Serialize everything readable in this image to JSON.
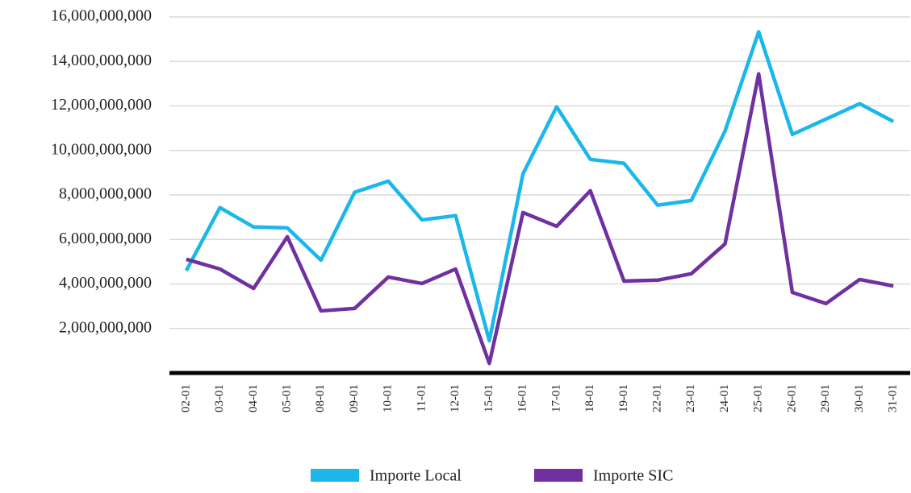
{
  "chart_data": {
    "type": "line",
    "categories": [
      "02-01",
      "03-01",
      "04-01",
      "05-01",
      "08-01",
      "09-01",
      "10-01",
      "11-01",
      "12-01",
      "15-01",
      "16-01",
      "17-01",
      "18-01",
      "19-01",
      "22-01",
      "23-01",
      "24-01",
      "25-01",
      "26-01",
      "29-01",
      "30-01",
      "31-01"
    ],
    "series": [
      {
        "name": "Importe Local",
        "color": "#1ab7ea",
        "values": [
          4600000000,
          7430000000,
          6560000000,
          6520000000,
          5070000000,
          8120000000,
          8620000000,
          6880000000,
          7070000000,
          1450000000,
          8950000000,
          11960000000,
          9600000000,
          9420000000,
          7540000000,
          7750000000,
          10870000000,
          15330000000,
          10720000000,
          11410000000,
          12100000000,
          11300000000
        ]
      },
      {
        "name": "Importe SIC",
        "color": "#7030a0",
        "values": [
          5110000000,
          4670000000,
          3800000000,
          6120000000,
          2790000000,
          2900000000,
          4310000000,
          4020000000,
          4670000000,
          430000000,
          7210000000,
          6590000000,
          8190000000,
          4130000000,
          4170000000,
          4460000000,
          5800000000,
          13440000000,
          3620000000,
          3120000000,
          4200000000,
          3910000000
        ]
      }
    ],
    "ylim": [
      0,
      16000000000
    ],
    "yticks": [
      {
        "value": 2000000000,
        "label": "2,000,000,000"
      },
      {
        "value": 4000000000,
        "label": "4,000,000,000"
      },
      {
        "value": 6000000000,
        "label": "6,000,000,000"
      },
      {
        "value": 8000000000,
        "label": "8,000,000,000"
      },
      {
        "value": 10000000000,
        "label": "10,000,000,000"
      },
      {
        "value": 12000000000,
        "label": "12,000,000,000"
      },
      {
        "value": 14000000000,
        "label": "14,000,000,000"
      },
      {
        "value": 16000000000,
        "label": "16,000,000,000"
      }
    ],
    "grid": true,
    "legend": "bottom"
  }
}
